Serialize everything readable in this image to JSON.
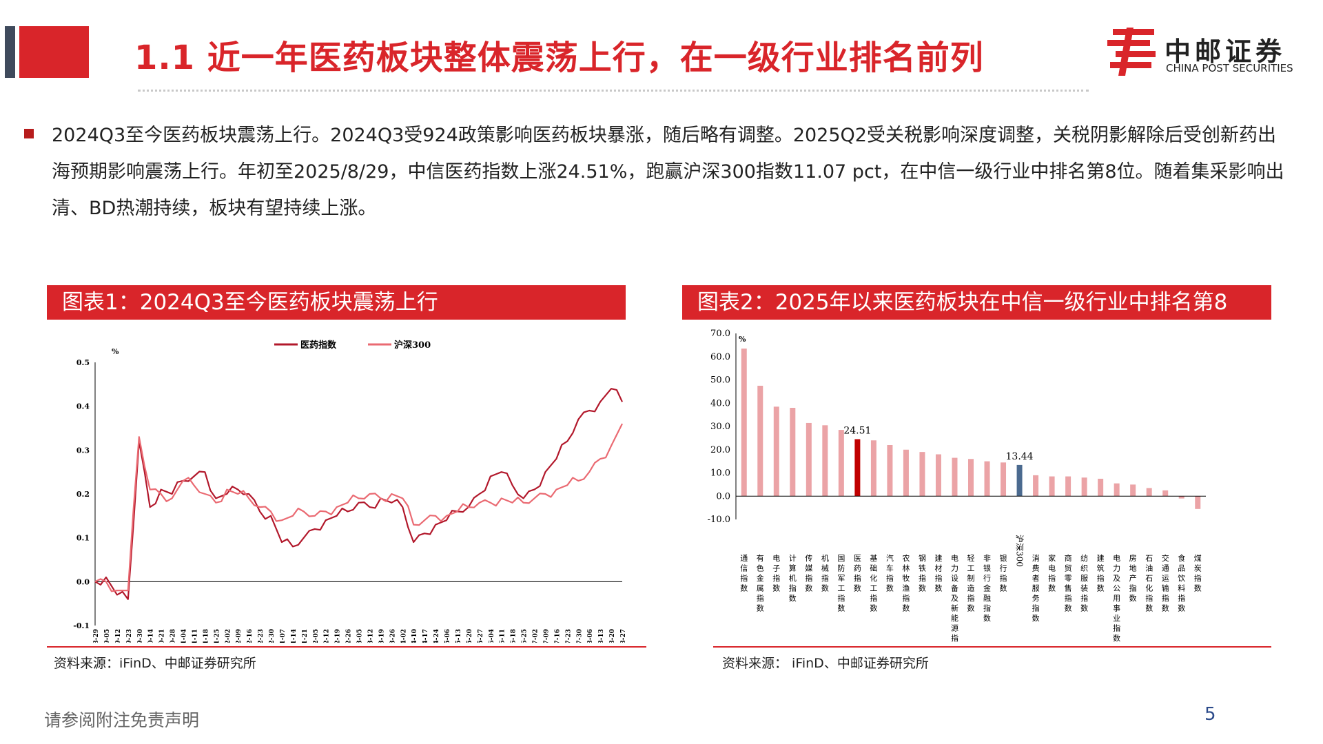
{
  "header": {
    "title": "1.1 近一年医药板块整体震荡上行，在一级行业排名前列",
    "logo_cn": "中邮证券",
    "logo_en": "CHINA POST SECURITIES"
  },
  "body_text": "2024Q3至今医药板块震荡上行。2024Q3受924政策影响医药板块暴涨，随后略有调整。2025Q2受关税影响深度调整，关税阴影解除后受创新药出海预期影响震荡上行。年初至2025/8/29，中信医药指数上涨24.51%，跑赢沪深300指数11.07 pct，在中信一级行业中排名第8位。随着集采影响出清、BD热潮持续，板块有望持续上涨。",
  "figure1": {
    "banner": "图表1：2024Q3至今医药板块震荡上行",
    "source": "资料来源：iFinD、中邮证券研究所"
  },
  "figure2": {
    "banner": "图表2：2025年以来医药板块在中信一级行业中排名第8",
    "source": "资料来源： iFinD、中邮证券研究所"
  },
  "footer": {
    "disclaimer": "请参阅附注免责声明",
    "page": "5"
  },
  "colors": {
    "accent": "#d9252a",
    "pharma_line": "#b2182b",
    "hs300_line": "#ea6a72",
    "bar_default": "#eba3a6",
    "bar_pharma": "#c00000",
    "bar_hs300": "#4b6a8f",
    "dark_gray": "#3f4a5c"
  },
  "chart_data": [
    {
      "type": "line",
      "title": "",
      "ylabel": "%",
      "ylim": [
        -0.1,
        0.5
      ],
      "yticks": [
        "0.5",
        "0.4",
        "0.3",
        "0.2",
        "0.1",
        "0.0",
        "-0.1"
      ],
      "xticks": [
        "2024-08-29",
        "2024-09-05",
        "2024-09-12",
        "2024-09-23",
        "2024-09-30",
        "2024-10-14",
        "2024-10-21",
        "2024-10-28",
        "2024-11-04",
        "2024-11-11",
        "2024-11-18",
        "2024-11-25",
        "2024-12-02",
        "2024-12-09",
        "2024-12-16",
        "2024-12-23",
        "2024-12-30",
        "2025-01-07",
        "2025-01-14",
        "2025-01-21",
        "2025-02-05",
        "2025-02-12",
        "2025-02-19",
        "2025-02-26",
        "2025-03-05",
        "2025-03-12",
        "2025-03-19",
        "2025-03-26",
        "2025-04-02",
        "2025-04-10",
        "2025-04-17",
        "2025-04-24",
        "2025-05-06",
        "2025-05-13",
        "2025-05-20",
        "2025-05-27",
        "2025-06-04",
        "2025-06-11",
        "2025-06-18",
        "2025-06-25",
        "2025-07-02",
        "2025-07-09",
        "2025-07-16",
        "2025-07-23",
        "2025-07-30",
        "2025-08-06",
        "2025-08-13",
        "2025-08-20",
        "2025-08-27"
      ],
      "series": [
        {
          "name": "医药指数",
          "values": [
            0.0,
            0.01,
            -0.03,
            -0.04,
            0.32,
            0.17,
            0.21,
            0.2,
            0.23,
            0.24,
            0.25,
            0.19,
            0.2,
            0.21,
            0.2,
            0.16,
            0.15,
            0.09,
            0.08,
            0.1,
            0.12,
            0.14,
            0.15,
            0.16,
            0.18,
            0.17,
            0.19,
            0.18,
            0.17,
            0.09,
            0.11,
            0.13,
            0.14,
            0.16,
            0.17,
            0.2,
            0.24,
            0.25,
            0.22,
            0.19,
            0.21,
            0.25,
            0.28,
            0.32,
            0.37,
            0.39,
            0.41,
            0.44,
            0.41
          ]
        },
        {
          "name": "沪深300",
          "values": [
            0.0,
            0.0,
            -0.02,
            -0.02,
            0.33,
            0.21,
            0.2,
            0.19,
            0.23,
            0.22,
            0.2,
            0.18,
            0.21,
            0.2,
            0.19,
            0.17,
            0.16,
            0.14,
            0.15,
            0.16,
            0.15,
            0.16,
            0.17,
            0.18,
            0.19,
            0.2,
            0.19,
            0.2,
            0.19,
            0.13,
            0.14,
            0.15,
            0.15,
            0.16,
            0.17,
            0.18,
            0.18,
            0.19,
            0.18,
            0.18,
            0.19,
            0.2,
            0.21,
            0.22,
            0.23,
            0.25,
            0.28,
            0.31,
            0.36
          ]
        }
      ],
      "legend": "top"
    },
    {
      "type": "bar",
      "title": "",
      "ylabel": "%",
      "ylim": [
        -10,
        70
      ],
      "yticks": [
        "70.0",
        "60.0",
        "50.0",
        "40.0",
        "30.0",
        "20.0",
        "10.0",
        "0.0",
        "-10.0"
      ],
      "categories": [
        "通信指数",
        "有色金属指数",
        "电子指数",
        "计算机指数",
        "传媒指数",
        "机械指数",
        "国防军工指数",
        "医药指数",
        "基础化工指数",
        "汽车指数",
        "农林牧渔指数",
        "钢铁指数",
        "建材指数",
        "电力设备及新能源指数",
        "轻工制造指数",
        "非银行金融指数",
        "银行指数",
        "沪深300",
        "消费者服务指数",
        "家电指数",
        "商贸零售指数",
        "纺织服装指数",
        "建筑指数",
        "电力及公用事业指数",
        "房地产指数",
        "石油石化指数",
        "交通运输指数",
        "食品饮料指数",
        "煤炭指数"
      ],
      "values": [
        63.5,
        47.5,
        38.5,
        38.0,
        31.5,
        30.5,
        28.5,
        24.51,
        24.0,
        22.0,
        20.0,
        19.0,
        18.0,
        16.5,
        16.0,
        15.0,
        14.5,
        13.44,
        9.0,
        8.5,
        8.5,
        8.0,
        7.5,
        5.5,
        5.0,
        3.5,
        2.5,
        -1.0,
        -5.5
      ],
      "data_labels": [
        {
          "category": "医药指数",
          "text": "24.51"
        },
        {
          "category": "沪深300",
          "text": "13.44"
        }
      ]
    }
  ]
}
